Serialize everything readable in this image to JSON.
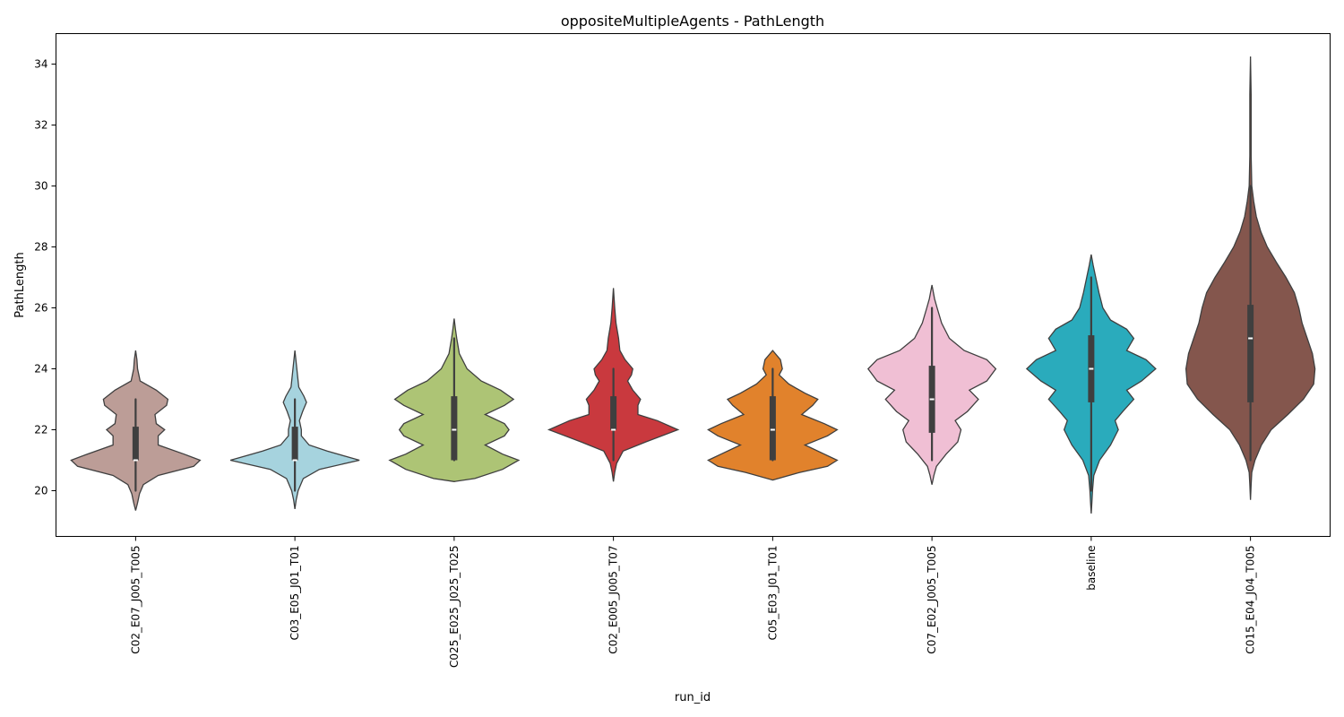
{
  "chart_data": {
    "type": "violin",
    "title": "oppositeMultipleAgents - PathLength",
    "xlabel": "run_id",
    "ylabel": "PathLength",
    "ylim": [
      18.5,
      35.0
    ],
    "yticks": [
      20,
      22,
      24,
      26,
      28,
      30,
      32,
      34
    ],
    "grid": false,
    "categories": [
      "C02_E07_J005_T005",
      "C03_E05_J01_T01",
      "C025_E025_J025_T025",
      "C02_E005_J005_T07",
      "C05_E03_J01_T01",
      "C07_E02_J005_T005",
      "baseline",
      "C015_E04_J04_T005"
    ],
    "series": [
      {
        "category": "C02_E07_J005_T005",
        "color": "#bc9d97",
        "min": 20,
        "q1": 21,
        "median": 21,
        "q3": 22.1,
        "max": 23,
        "kde_min": 19.35,
        "kde_max": 24.6,
        "density": [
          [
            19.35,
            0.0
          ],
          [
            19.6,
            0.03
          ],
          [
            19.9,
            0.06
          ],
          [
            20.2,
            0.12
          ],
          [
            20.5,
            0.35
          ],
          [
            20.8,
            0.9
          ],
          [
            21.0,
            1.0
          ],
          [
            21.2,
            0.75
          ],
          [
            21.5,
            0.35
          ],
          [
            21.8,
            0.35
          ],
          [
            22.0,
            0.45
          ],
          [
            22.2,
            0.32
          ],
          [
            22.5,
            0.3
          ],
          [
            22.8,
            0.48
          ],
          [
            23.0,
            0.5
          ],
          [
            23.3,
            0.32
          ],
          [
            23.6,
            0.07
          ],
          [
            24.0,
            0.03
          ],
          [
            24.3,
            0.02
          ],
          [
            24.6,
            0.0
          ]
        ]
      },
      {
        "category": "C03_E05_J01_T01",
        "color": "#a6d3de",
        "min": 20,
        "q1": 21,
        "median": 21,
        "q3": 22.1,
        "max": 23,
        "kde_min": 19.4,
        "kde_max": 24.6,
        "density": [
          [
            19.4,
            0.0
          ],
          [
            19.7,
            0.02
          ],
          [
            20.0,
            0.05
          ],
          [
            20.4,
            0.13
          ],
          [
            20.7,
            0.38
          ],
          [
            21.0,
            1.0
          ],
          [
            21.3,
            0.5
          ],
          [
            21.5,
            0.22
          ],
          [
            21.8,
            0.1
          ],
          [
            22.0,
            0.1
          ],
          [
            22.3,
            0.07
          ],
          [
            22.6,
            0.12
          ],
          [
            22.9,
            0.18
          ],
          [
            23.1,
            0.14
          ],
          [
            23.4,
            0.06
          ],
          [
            23.8,
            0.04
          ],
          [
            24.2,
            0.02
          ],
          [
            24.6,
            0.0
          ]
        ]
      },
      {
        "category": "C025_E025_J025_T025",
        "color": "#adc475",
        "min": 21,
        "q1": 21,
        "median": 22,
        "q3": 23.1,
        "max": 25,
        "kde_min": 20.3,
        "kde_max": 25.65,
        "density": [
          [
            20.3,
            0.0
          ],
          [
            20.4,
            0.32
          ],
          [
            20.7,
            0.75
          ],
          [
            21.0,
            1.0
          ],
          [
            21.2,
            0.75
          ],
          [
            21.5,
            0.48
          ],
          [
            21.8,
            0.78
          ],
          [
            22.0,
            0.85
          ],
          [
            22.2,
            0.78
          ],
          [
            22.5,
            0.48
          ],
          [
            22.8,
            0.78
          ],
          [
            23.0,
            0.92
          ],
          [
            23.3,
            0.72
          ],
          [
            23.6,
            0.42
          ],
          [
            24.0,
            0.2
          ],
          [
            24.5,
            0.08
          ],
          [
            25.0,
            0.04
          ],
          [
            25.3,
            0.02
          ],
          [
            25.65,
            0.0
          ]
        ]
      },
      {
        "category": "C02_E005_J005_T07",
        "color": "#c9393e",
        "min": 21,
        "q1": 22,
        "median": 22,
        "q3": 23.1,
        "max": 24,
        "kde_min": 20.3,
        "kde_max": 26.65,
        "density": [
          [
            20.3,
            0.0
          ],
          [
            20.6,
            0.02
          ],
          [
            20.9,
            0.05
          ],
          [
            21.3,
            0.15
          ],
          [
            21.6,
            0.5
          ],
          [
            22.0,
            1.0
          ],
          [
            22.3,
            0.68
          ],
          [
            22.5,
            0.38
          ],
          [
            22.8,
            0.38
          ],
          [
            23.0,
            0.42
          ],
          [
            23.3,
            0.3
          ],
          [
            23.6,
            0.22
          ],
          [
            23.8,
            0.28
          ],
          [
            24.0,
            0.3
          ],
          [
            24.3,
            0.18
          ],
          [
            24.6,
            0.1
          ],
          [
            25.0,
            0.08
          ],
          [
            25.5,
            0.04
          ],
          [
            26.0,
            0.02
          ],
          [
            26.65,
            0.0
          ]
        ]
      },
      {
        "category": "C05_E03_J01_T01",
        "color": "#e1822c",
        "min": 21,
        "q1": 21,
        "median": 22,
        "q3": 23.1,
        "max": 24,
        "kde_min": 20.35,
        "kde_max": 24.6,
        "density": [
          [
            20.35,
            0.0
          ],
          [
            20.6,
            0.42
          ],
          [
            20.8,
            0.85
          ],
          [
            21.0,
            1.0
          ],
          [
            21.2,
            0.8
          ],
          [
            21.5,
            0.5
          ],
          [
            21.8,
            0.85
          ],
          [
            22.0,
            1.0
          ],
          [
            22.2,
            0.8
          ],
          [
            22.5,
            0.45
          ],
          [
            22.8,
            0.62
          ],
          [
            23.0,
            0.7
          ],
          [
            23.2,
            0.5
          ],
          [
            23.5,
            0.25
          ],
          [
            23.8,
            0.1
          ],
          [
            24.0,
            0.15
          ],
          [
            24.3,
            0.12
          ],
          [
            24.6,
            0.0
          ]
        ]
      },
      {
        "category": "C07_E02_J005_T005",
        "color": "#f0bfd4",
        "min": 21,
        "q1": 21.9,
        "median": 23,
        "q3": 24.1,
        "max": 26,
        "kde_min": 20.2,
        "kde_max": 26.75,
        "density": [
          [
            20.2,
            0.0
          ],
          [
            20.5,
            0.03
          ],
          [
            20.8,
            0.07
          ],
          [
            21.2,
            0.22
          ],
          [
            21.6,
            0.4
          ],
          [
            22.0,
            0.45
          ],
          [
            22.3,
            0.36
          ],
          [
            22.6,
            0.55
          ],
          [
            23.0,
            0.72
          ],
          [
            23.3,
            0.58
          ],
          [
            23.6,
            0.85
          ],
          [
            24.0,
            0.99
          ],
          [
            24.3,
            0.85
          ],
          [
            24.6,
            0.5
          ],
          [
            25.0,
            0.27
          ],
          [
            25.5,
            0.15
          ],
          [
            26.0,
            0.08
          ],
          [
            26.3,
            0.04
          ],
          [
            26.75,
            0.0
          ]
        ]
      },
      {
        "category": "baseline",
        "color": "#2aabbc",
        "min": 20,
        "q1": 22.9,
        "median": 24,
        "q3": 25.1,
        "max": 27,
        "kde_min": 19.25,
        "kde_max": 27.75,
        "density": [
          [
            19.25,
            0.0
          ],
          [
            19.6,
            0.01
          ],
          [
            20.0,
            0.02
          ],
          [
            20.5,
            0.04
          ],
          [
            21.0,
            0.13
          ],
          [
            21.5,
            0.3
          ],
          [
            22.0,
            0.42
          ],
          [
            22.3,
            0.37
          ],
          [
            22.6,
            0.49
          ],
          [
            23.0,
            0.66
          ],
          [
            23.3,
            0.55
          ],
          [
            23.6,
            0.78
          ],
          [
            24.0,
            1.0
          ],
          [
            24.3,
            0.85
          ],
          [
            24.6,
            0.55
          ],
          [
            25.0,
            0.66
          ],
          [
            25.3,
            0.55
          ],
          [
            25.6,
            0.3
          ],
          [
            26.0,
            0.18
          ],
          [
            26.5,
            0.12
          ],
          [
            27.0,
            0.07
          ],
          [
            27.4,
            0.03
          ],
          [
            27.75,
            0.0
          ]
        ]
      },
      {
        "category": "C015_E04_J04_T005",
        "color": "#84564d",
        "min": 21,
        "q1": 22.9,
        "median": 25,
        "q3": 26.1,
        "max": 30,
        "kde_min": 19.7,
        "kde_max": 34.25,
        "density": [
          [
            19.7,
            0.0
          ],
          [
            20.2,
            0.01
          ],
          [
            20.6,
            0.02
          ],
          [
            21.0,
            0.07
          ],
          [
            21.5,
            0.17
          ],
          [
            22.0,
            0.32
          ],
          [
            22.5,
            0.58
          ],
          [
            23.0,
            0.82
          ],
          [
            23.5,
            0.98
          ],
          [
            24.0,
            1.0
          ],
          [
            24.5,
            0.96
          ],
          [
            25.0,
            0.88
          ],
          [
            25.5,
            0.8
          ],
          [
            26.0,
            0.75
          ],
          [
            26.5,
            0.68
          ],
          [
            27.0,
            0.55
          ],
          [
            27.5,
            0.4
          ],
          [
            28.0,
            0.26
          ],
          [
            28.5,
            0.16
          ],
          [
            29.0,
            0.09
          ],
          [
            29.5,
            0.05
          ],
          [
            30.0,
            0.02
          ],
          [
            31.0,
            0.01
          ],
          [
            32.0,
            0.01
          ],
          [
            33.0,
            0.01
          ],
          [
            34.25,
            0.0
          ]
        ]
      }
    ]
  }
}
